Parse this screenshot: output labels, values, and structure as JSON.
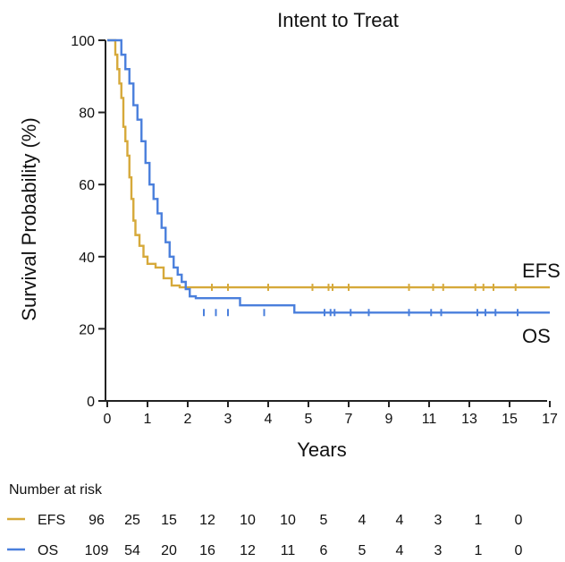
{
  "chart_data": {
    "type": "line",
    "title": "Intent to Treat",
    "xlabel": "Years",
    "ylabel": "Survival Probability (%)",
    "xlim": [
      0,
      17.3
    ],
    "ylim": [
      0,
      100
    ],
    "x_ticks": [
      {
        "value": 0,
        "label": "0"
      },
      {
        "value": 1,
        "label": "1"
      },
      {
        "value": 2,
        "label": "2"
      },
      {
        "value": 3,
        "label": "3"
      },
      {
        "value": 4,
        "label": "4"
      },
      {
        "value": 5,
        "label": "5"
      },
      {
        "value": 6,
        "label": "7"
      },
      {
        "value": 7,
        "label": "9"
      },
      {
        "value": 8,
        "label": "11"
      },
      {
        "value": 9,
        "label": "13"
      },
      {
        "value": 10,
        "label": "15"
      },
      {
        "value": 11,
        "label": "17"
      }
    ],
    "y_ticks": [
      0,
      20,
      40,
      60,
      80,
      100
    ],
    "grid": false,
    "legend": "series labels at right end of curves",
    "series": [
      {
        "name": "EFS",
        "color": "#d6a93a",
        "points": [
          [
            0,
            100
          ],
          [
            0.15,
            100
          ],
          [
            0.2,
            96
          ],
          [
            0.25,
            92
          ],
          [
            0.3,
            88
          ],
          [
            0.35,
            84
          ],
          [
            0.4,
            76
          ],
          [
            0.45,
            72
          ],
          [
            0.5,
            68
          ],
          [
            0.55,
            62
          ],
          [
            0.6,
            56
          ],
          [
            0.65,
            50
          ],
          [
            0.7,
            46
          ],
          [
            0.8,
            43
          ],
          [
            0.9,
            40
          ],
          [
            1.0,
            38
          ],
          [
            1.2,
            37
          ],
          [
            1.4,
            34
          ],
          [
            1.6,
            32
          ],
          [
            1.8,
            31.5
          ],
          [
            2.0,
            31.5
          ],
          [
            17,
            31.5
          ]
        ],
        "censors": [
          2.6,
          3.0,
          4.0,
          5.2,
          6.0,
          6.2,
          7.0,
          10.0,
          11.2,
          11.7,
          13.3,
          13.7,
          14.2,
          15.3
        ]
      },
      {
        "name": "OS",
        "color": "#4a7fdc",
        "points": [
          [
            0,
            100
          ],
          [
            0.25,
            100
          ],
          [
            0.35,
            96
          ],
          [
            0.45,
            92
          ],
          [
            0.55,
            88
          ],
          [
            0.65,
            82
          ],
          [
            0.75,
            78
          ],
          [
            0.85,
            72
          ],
          [
            0.95,
            66
          ],
          [
            1.05,
            60
          ],
          [
            1.15,
            56
          ],
          [
            1.25,
            52
          ],
          [
            1.35,
            48
          ],
          [
            1.45,
            44
          ],
          [
            1.55,
            40
          ],
          [
            1.65,
            37
          ],
          [
            1.75,
            35
          ],
          [
            1.85,
            33
          ],
          [
            1.95,
            31
          ],
          [
            2.05,
            29
          ],
          [
            2.2,
            28.5
          ],
          [
            3.2,
            28.5
          ],
          [
            3.3,
            26.5
          ],
          [
            4.6,
            26.5
          ],
          [
            4.65,
            24.5
          ],
          [
            17,
            24.5
          ]
        ],
        "censors": [
          2.4,
          2.7,
          3.0,
          3.9,
          5.8,
          6.1,
          6.3,
          7.1,
          8.0,
          10.0,
          11.1,
          11.6,
          13.4,
          13.8,
          14.3,
          15.4
        ]
      }
    ]
  },
  "risk_table": {
    "heading": "Number at risk",
    "rows": [
      {
        "name": "EFS",
        "color": "#d6a93a",
        "values": [
          "96",
          "25",
          "15",
          "12",
          "10",
          "10",
          "5",
          "4",
          "4",
          "3",
          "1",
          "0"
        ]
      },
      {
        "name": "OS",
        "color": "#4a7fdc",
        "values": [
          "109",
          "54",
          "20",
          "16",
          "12",
          "11",
          "6",
          "5",
          "4",
          "3",
          "1",
          "0"
        ]
      }
    ]
  }
}
